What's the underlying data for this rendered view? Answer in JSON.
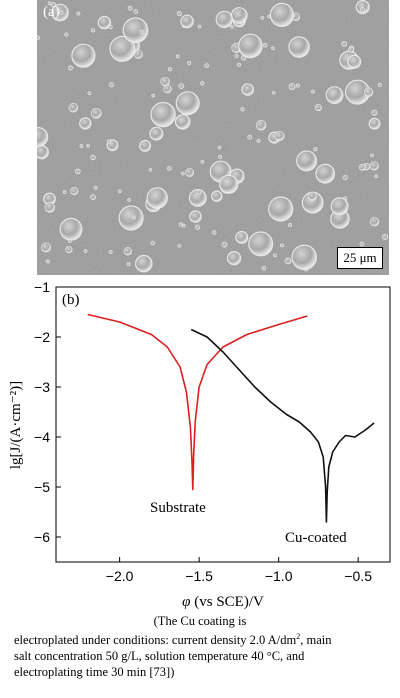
{
  "panel_a": {
    "label": "(a)",
    "scale_bar": "25 μm"
  },
  "chart_data": {
    "type": "line",
    "panel_label": "(b)",
    "xlabel_symbol": "φ",
    "xlabel_rest": " (vs SCE)/V",
    "ylabel": "lg[J/(A·cm⁻²)]",
    "xlim": [
      -2.4,
      -0.3
    ],
    "ylim": [
      -6.5,
      -1
    ],
    "x_ticks": [
      -2.0,
      -1.5,
      -1.0,
      -0.5
    ],
    "x_tick_labels": [
      "−2.0",
      "−1.5",
      "−1.0",
      "−0.5"
    ],
    "y_ticks": [
      -1,
      -2,
      -3,
      -4,
      -5,
      -6
    ],
    "y_tick_labels": [
      "−1",
      "−2",
      "−3",
      "−4",
      "−5",
      "−6"
    ],
    "series": [
      {
        "name": "Substrate",
        "color": "#dd1f1f",
        "points": [
          [
            -2.2,
            -1.55
          ],
          [
            -2.0,
            -1.7
          ],
          [
            -1.8,
            -1.95
          ],
          [
            -1.7,
            -2.2
          ],
          [
            -1.62,
            -2.6
          ],
          [
            -1.58,
            -3.1
          ],
          [
            -1.555,
            -3.8
          ],
          [
            -1.545,
            -4.5
          ],
          [
            -1.54,
            -5.05
          ],
          [
            -1.535,
            -4.4
          ],
          [
            -1.525,
            -3.7
          ],
          [
            -1.5,
            -3.0
          ],
          [
            -1.45,
            -2.55
          ],
          [
            -1.35,
            -2.2
          ],
          [
            -1.2,
            -1.95
          ],
          [
            -1.0,
            -1.75
          ],
          [
            -0.82,
            -1.58
          ]
        ]
      },
      {
        "name": "Cu-coated",
        "color": "#111111",
        "points": [
          [
            -1.55,
            -1.85
          ],
          [
            -1.45,
            -2.0
          ],
          [
            -1.35,
            -2.3
          ],
          [
            -1.25,
            -2.65
          ],
          [
            -1.15,
            -3.0
          ],
          [
            -1.05,
            -3.3
          ],
          [
            -0.95,
            -3.55
          ],
          [
            -0.87,
            -3.7
          ],
          [
            -0.8,
            -3.9
          ],
          [
            -0.75,
            -4.1
          ],
          [
            -0.72,
            -4.4
          ],
          [
            -0.705,
            -5.0
          ],
          [
            -0.7,
            -5.7
          ],
          [
            -0.695,
            -5.1
          ],
          [
            -0.685,
            -4.6
          ],
          [
            -0.66,
            -4.3
          ],
          [
            -0.62,
            -4.1
          ],
          [
            -0.58,
            -3.97
          ],
          [
            -0.52,
            -4.0
          ],
          [
            -0.45,
            -3.85
          ],
          [
            -0.4,
            -3.72
          ]
        ]
      }
    ],
    "annotations": [
      "Substrate",
      "Cu-coated"
    ]
  },
  "caption": {
    "line1": "(The Cu coating is",
    "line2a": "electroplated under conditions: current density 2.0 A/dm",
    "line2sup": "2",
    "line2b": ", main",
    "line3": "salt concentration 50 g/L, solution temperature 40 °C, and",
    "line4": "electroplating time 30 min [73])"
  }
}
